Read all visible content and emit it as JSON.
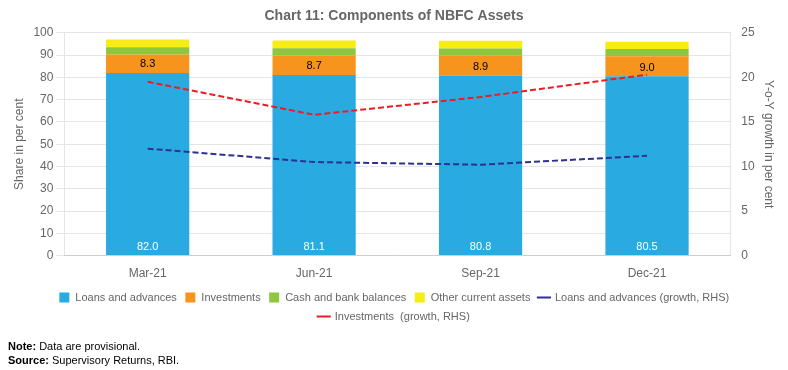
{
  "chart_data": {
    "type": "bar",
    "title": "Chart 11: Components of NBFC Assets",
    "categories": [
      "Mar-21",
      "Jun-21",
      "Sep-21",
      "Dec-21"
    ],
    "stacked": true,
    "series": [
      {
        "name": "Loans and advances",
        "color": "#29ABE2",
        "values": [
          82.0,
          81.1,
          80.8,
          80.5
        ],
        "data_labels": true,
        "value_labels": [
          "82.0",
          "81.1",
          "80.8",
          "80.5"
        ]
      },
      {
        "name": "Investments",
        "color": "#F7941D",
        "values": [
          8.3,
          8.7,
          8.9,
          9.0
        ],
        "data_labels": true,
        "value_labels": [
          "8.3",
          "8.7",
          "8.9",
          "9.0"
        ]
      },
      {
        "name": "Cash and bank balances",
        "color": "#8DC63F",
        "values": [
          3.2,
          3.3,
          3.3,
          3.2
        ]
      },
      {
        "name": "Other current assets",
        "color": "#F7EC13",
        "values": [
          3.5,
          3.4,
          3.4,
          3.3
        ]
      },
      {
        "name": "Loans and advances (growth, RHS)",
        "type": "line",
        "axis": "y2",
        "color": "#2E3192",
        "line_style": "dashed",
        "values": [
          12.0,
          10.5,
          10.2,
          11.2
        ]
      },
      {
        "name": "Investments  (growth, RHS)",
        "type": "line",
        "axis": "y2",
        "color": "#ED1C24",
        "line_style": "dashed",
        "values": [
          19.5,
          15.8,
          17.8,
          20.3
        ]
      }
    ],
    "ylabel": "Share in per cent",
    "y2label": "Y-o-Y growth in per cent",
    "ylim": [
      0,
      100
    ],
    "yticks": [
      0,
      10,
      20,
      30,
      40,
      50,
      60,
      70,
      80,
      90,
      100
    ],
    "y2lim": [
      0,
      25
    ],
    "y2ticks": [
      0,
      5,
      10,
      15,
      20,
      25
    ],
    "grid": true,
    "legend": "bottom",
    "annotations": [
      "Note: Data are provisional.",
      "Source: Supervisory Returns, RBI."
    ]
  }
}
